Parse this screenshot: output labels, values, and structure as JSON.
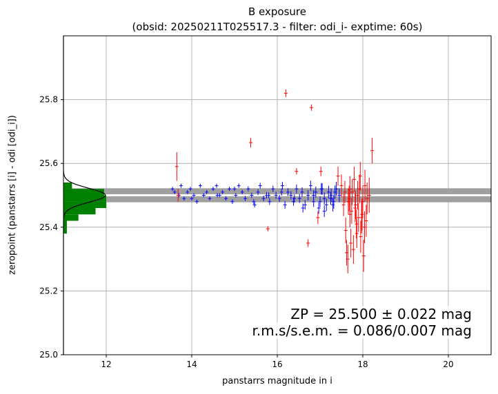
{
  "chart_data": {
    "type": "scatter",
    "title": "B exposure",
    "subtitle": "(obsid: 20250211T025517.3 - filter: odi_i- exptime: 60s)",
    "xlabel": "panstarrs magnitude in i",
    "ylabel": "zeropoint (panstarrs [i] - odi [odi_i])",
    "xlim": [
      11,
      21
    ],
    "ylim": [
      25.0,
      26.0
    ],
    "xticks": [
      "12",
      "14",
      "16",
      "18",
      "20"
    ],
    "yticks": [
      "25.0",
      "25.2",
      "25.4",
      "25.6",
      "25.8"
    ],
    "grid": true,
    "zeropoint": 25.5,
    "zeropoint_error": 0.022,
    "annotations": [
      "ZP = 25.500 ± 0.022 mag",
      "r.m.s/s.e.m. = 0.086/0.007 mag"
    ],
    "colors": {
      "used": "#0000ff",
      "rejected": "#ff0000",
      "histogram": "#008000",
      "band": "#a0a0a0",
      "grid": "#b0b0b0"
    },
    "histogram": {
      "bin_edges": [
        25.38,
        25.4,
        25.42,
        25.44,
        25.46,
        25.48,
        25.5,
        25.52,
        25.54
      ],
      "lengths_mag": [
        0.08,
        0.08,
        0.35,
        0.75,
        1.0,
        1.0,
        0.95,
        0.2
      ]
    },
    "gaussian_fit": {
      "mean": 25.5,
      "sigma": 0.022,
      "peak_mag": 0.98
    },
    "series": [
      {
        "name": "",
        "role": "used",
        "x": [
          13.55,
          13.7,
          13.75,
          13.82,
          13.9,
          13.97,
          14.05,
          14.12,
          14.2,
          14.28,
          14.35,
          14.42,
          14.5,
          14.58,
          14.65,
          14.72,
          14.8,
          14.88,
          14.95,
          15.03,
          15.1,
          15.18,
          15.25,
          15.32,
          15.4,
          15.47,
          15.55,
          15.6,
          15.68,
          15.75,
          15.82,
          15.9,
          15.97,
          16.05,
          16.12,
          16.18,
          16.25,
          16.32,
          16.38,
          16.45,
          16.52,
          16.58,
          16.65,
          16.72,
          16.78,
          16.85,
          16.9,
          16.97,
          17.03,
          17.1,
          17.15,
          17.2,
          17.26,
          17.32,
          17.38,
          13.6,
          14.0,
          14.6,
          15.0,
          15.45,
          15.8,
          16.1,
          16.4,
          16.6,
          16.85,
          17.0,
          17.1,
          17.25,
          17.35,
          17.45,
          17.05,
          17.3
        ],
        "y": [
          25.52,
          25.5,
          25.53,
          25.49,
          25.51,
          25.52,
          25.5,
          25.48,
          25.53,
          25.5,
          25.51,
          25.49,
          25.52,
          25.53,
          25.5,
          25.51,
          25.49,
          25.52,
          25.48,
          25.5,
          25.53,
          25.51,
          25.49,
          25.52,
          25.5,
          25.47,
          25.51,
          25.53,
          25.49,
          25.5,
          25.48,
          25.52,
          25.5,
          25.49,
          25.53,
          25.47,
          25.51,
          25.5,
          25.48,
          25.52,
          25.49,
          25.51,
          25.47,
          25.5,
          25.53,
          25.48,
          25.51,
          25.46,
          25.52,
          25.49,
          25.47,
          25.51,
          25.5,
          25.48,
          25.52,
          25.51,
          25.49,
          25.5,
          25.52,
          25.48,
          25.5,
          25.51,
          25.49,
          25.46,
          25.5,
          25.48,
          25.45,
          25.49,
          25.51,
          25.5,
          25.52,
          25.47
        ],
        "xerr": 0.04,
        "yerr": [
          0.005,
          0.005,
          0.005,
          0.005,
          0.005,
          0.005,
          0.005,
          0.005,
          0.005,
          0.005,
          0.005,
          0.005,
          0.006,
          0.006,
          0.006,
          0.006,
          0.006,
          0.006,
          0.007,
          0.007,
          0.007,
          0.007,
          0.008,
          0.008,
          0.008,
          0.008,
          0.009,
          0.009,
          0.009,
          0.01,
          0.01,
          0.01,
          0.011,
          0.011,
          0.012,
          0.012,
          0.012,
          0.013,
          0.013,
          0.014,
          0.014,
          0.015,
          0.015,
          0.016,
          0.016,
          0.017,
          0.017,
          0.018,
          0.018,
          0.019,
          0.019,
          0.02,
          0.021,
          0.022,
          0.022,
          0.005,
          0.005,
          0.006,
          0.007,
          0.008,
          0.009,
          0.011,
          0.013,
          0.014,
          0.016,
          0.017,
          0.018,
          0.02,
          0.021,
          0.022,
          0.018,
          0.021
        ]
      },
      {
        "name": "",
        "role": "rejected",
        "x": [
          13.65,
          13.68,
          15.38,
          15.78,
          16.2,
          16.45,
          16.72,
          16.8,
          16.95,
          17.02,
          17.42,
          17.5,
          17.55,
          17.6,
          17.62,
          17.65,
          17.68,
          17.7,
          17.72,
          17.75,
          17.78,
          17.8,
          17.82,
          17.85,
          17.88,
          17.9,
          17.92,
          17.95,
          17.98,
          18.0,
          18.02,
          18.05,
          18.08,
          18.1,
          18.15,
          18.22,
          17.58,
          17.66,
          17.74,
          17.86,
          17.94,
          18.04,
          17.7,
          17.83,
          17.97
        ],
        "y": [
          25.59,
          25.5,
          25.665,
          25.395,
          25.82,
          25.575,
          25.35,
          25.775,
          25.43,
          25.575,
          25.56,
          25.53,
          25.47,
          25.39,
          25.32,
          25.3,
          25.49,
          25.44,
          25.35,
          25.51,
          25.33,
          25.55,
          25.46,
          25.41,
          25.5,
          25.43,
          25.52,
          25.37,
          25.44,
          25.48,
          25.31,
          25.53,
          25.42,
          25.49,
          25.5,
          25.64,
          25.51,
          25.48,
          25.45,
          25.38,
          25.56,
          25.4,
          25.52,
          25.47,
          25.43
        ],
        "xerr": 0.04,
        "yerr": [
          0.045,
          0.02,
          0.015,
          0.008,
          0.012,
          0.01,
          0.012,
          0.01,
          0.02,
          0.015,
          0.03,
          0.035,
          0.035,
          0.04,
          0.04,
          0.045,
          0.04,
          0.04,
          0.045,
          0.04,
          0.045,
          0.04,
          0.045,
          0.045,
          0.045,
          0.045,
          0.045,
          0.05,
          0.05,
          0.05,
          0.05,
          0.05,
          0.05,
          0.05,
          0.055,
          0.04,
          0.035,
          0.04,
          0.04,
          0.045,
          0.045,
          0.05,
          0.04,
          0.045,
          0.05
        ]
      }
    ]
  }
}
